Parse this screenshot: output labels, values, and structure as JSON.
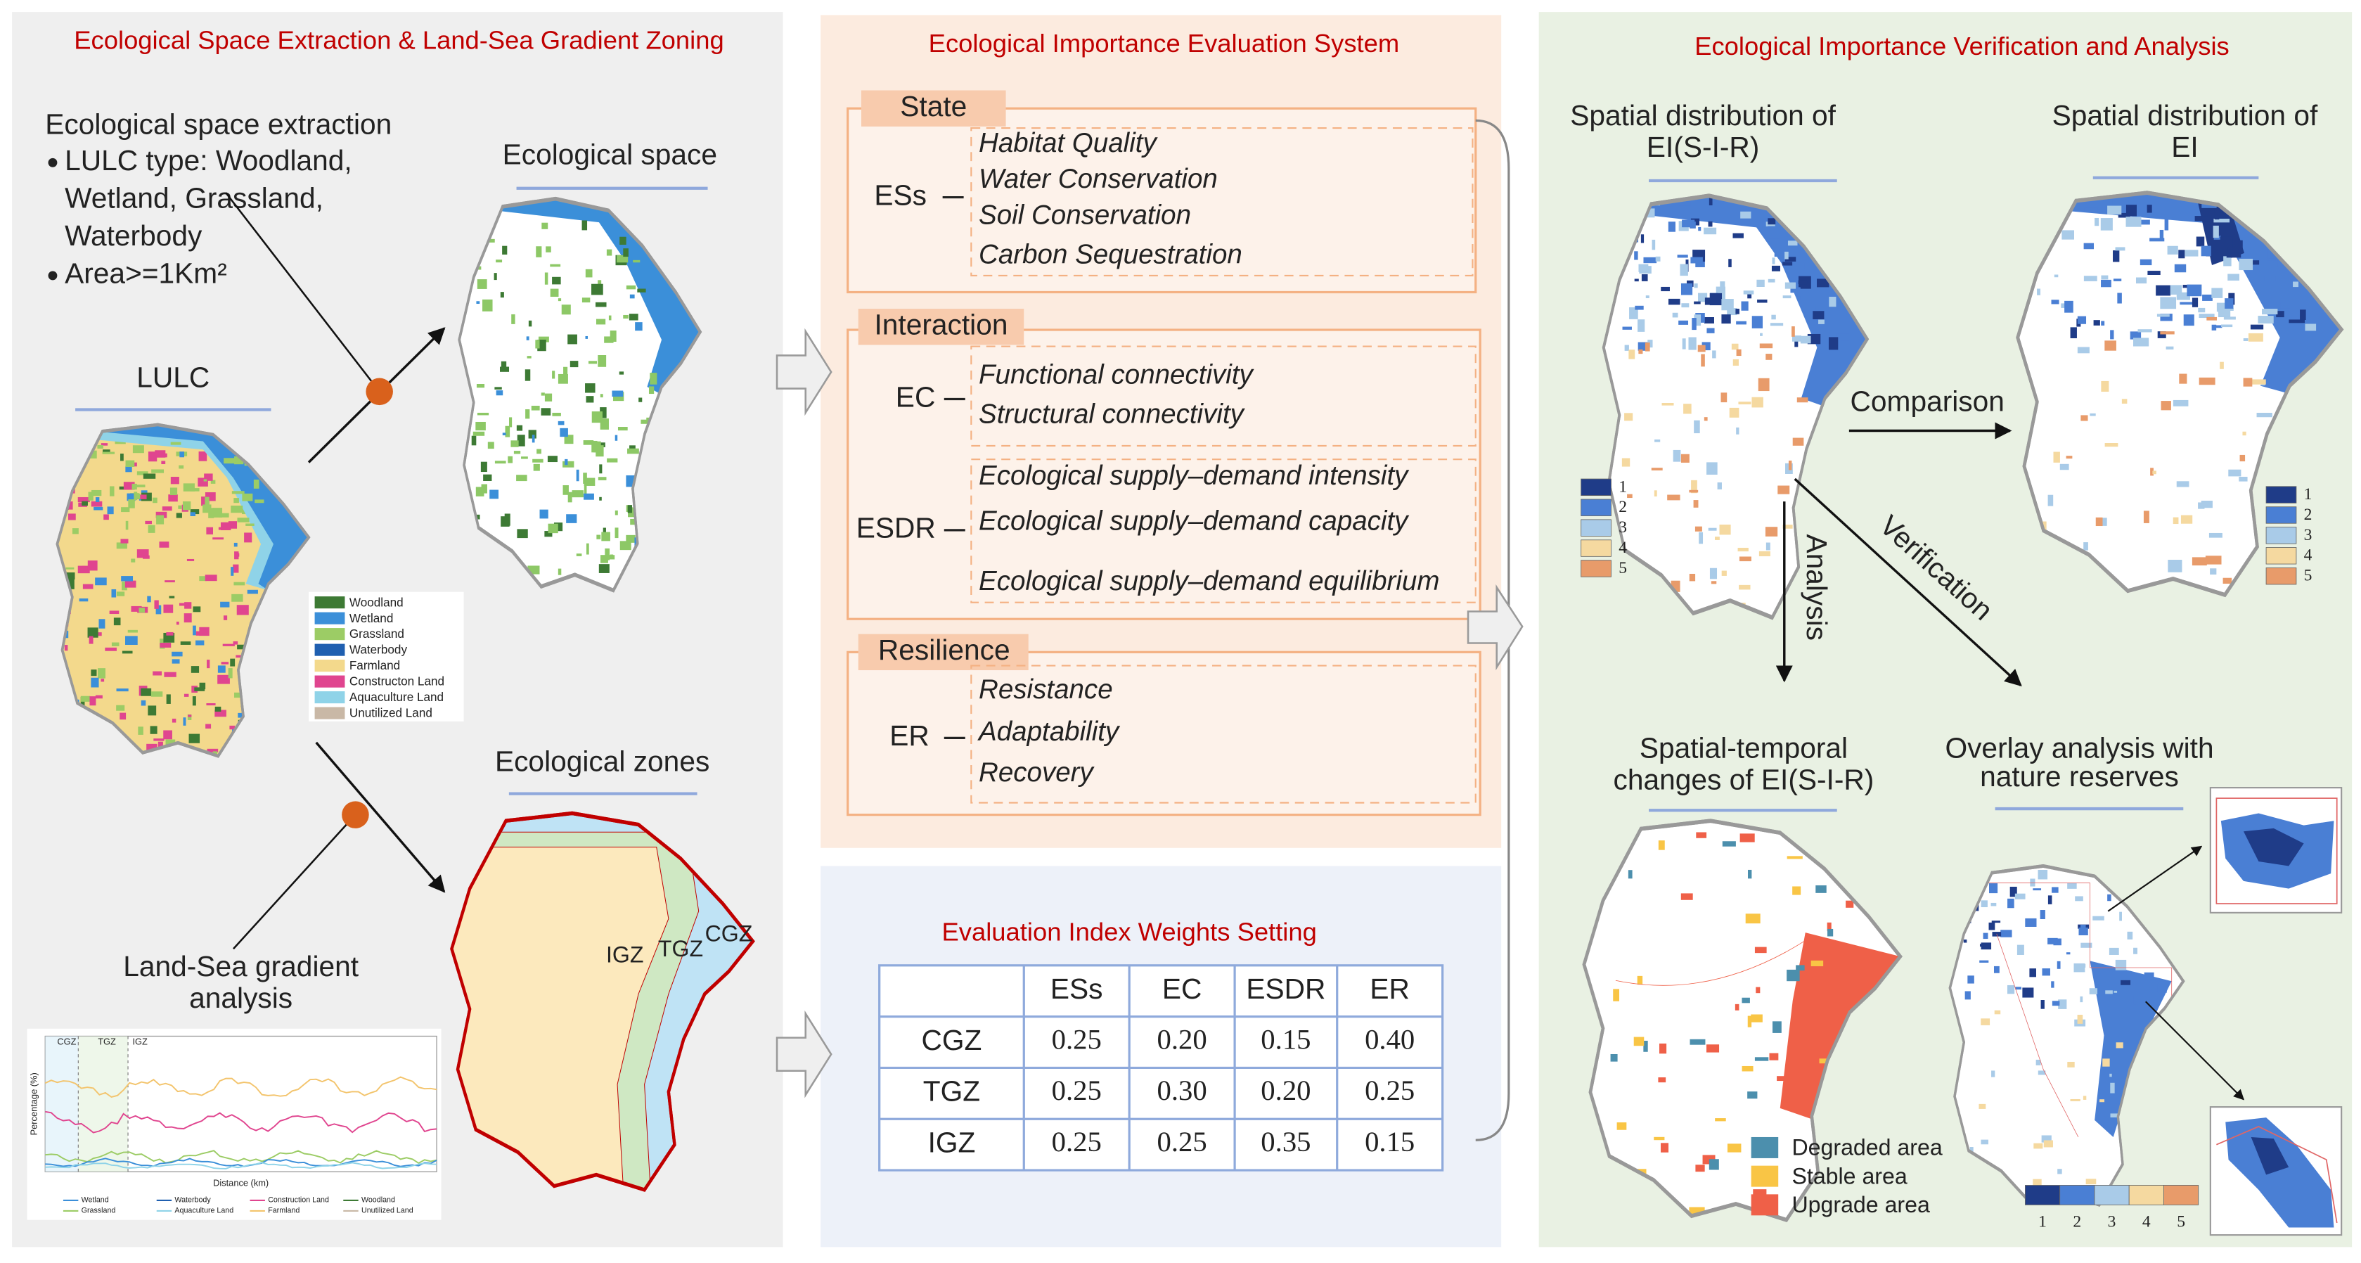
{
  "left": {
    "title": "Ecological Space Extraction & Land-Sea Gradient Zoning",
    "extraction_heading": "Ecological space extraction",
    "bullets": [
      [
        "LULC type: Woodland,",
        "Wetland, Grassland,",
        "Waterbody"
      ],
      [
        "Area>=1Km²"
      ]
    ],
    "ecological_space": "Ecological space",
    "lulc": "LULC",
    "lulc_legend": [
      "Woodland",
      "Wetland",
      "Grassland",
      "Waterbody",
      "Farmland",
      "Constructon Land",
      "Aquaculture Land",
      "Unutilized Land"
    ],
    "ecological_zones": "Ecological zones",
    "zones": [
      "IGZ",
      "TGZ",
      "CGZ"
    ],
    "gradient_analysis": [
      "Land-Sea gradient",
      "analysis"
    ],
    "gradient_chart": {
      "zones": [
        "CGZ",
        "TGZ",
        "IGZ"
      ],
      "ylabel": "Percentage (%)",
      "xlabel": "Distance (km)",
      "legend": [
        "Wetland",
        "Waterbody",
        "Construction Land",
        "Woodland",
        "Grassland",
        "Aquaculture Land",
        "Farmland",
        "Unutilized Land"
      ]
    }
  },
  "middle": {
    "title": "Ecological Importance Evaluation System",
    "groups": [
      {
        "tab": "State",
        "blocks": [
          {
            "label": "ESs",
            "items": [
              "Habitat Quality",
              "Water Conservation",
              "Soil Conservation",
              "Carbon Sequestration"
            ]
          }
        ]
      },
      {
        "tab": "Interaction",
        "blocks": [
          {
            "label": "EC",
            "items": [
              "Functional connectivity",
              "Structural connectivity"
            ]
          },
          {
            "label": "ESDR",
            "items": [
              "Ecological supply–demand intensity",
              "Ecological supply–demand capacity",
              "Ecological supply–demand equilibrium"
            ]
          }
        ]
      },
      {
        "tab": "Resilience",
        "blocks": [
          {
            "label": "ER",
            "items": [
              "Resistance",
              "Adaptability",
              "Recovery"
            ]
          }
        ]
      }
    ],
    "weights": {
      "title": "Evaluation Index Weights Setting",
      "header": [
        "ESs",
        "EC",
        "ESDR",
        "ER"
      ],
      "rows": [
        [
          "CGZ",
          "0.25",
          "0.20",
          "0.15",
          "0.40"
        ],
        [
          "TGZ",
          "0.25",
          "0.30",
          "0.20",
          "0.25"
        ],
        [
          "IGZ",
          "0.25",
          "0.25",
          "0.35",
          "0.15"
        ]
      ]
    }
  },
  "right": {
    "title": "Ecological Importance Verification and Analysis",
    "maps": [
      {
        "title": [
          "Spatial distribution of",
          "EI(S-I-R)"
        ]
      },
      {
        "title": [
          "Spatial distribution of",
          "EI"
        ]
      },
      {
        "title": [
          "Spatial-temporal",
          "changes of EI(S-I-R)"
        ]
      },
      {
        "title": [
          "Overlay analysis with",
          "nature reserves"
        ]
      }
    ],
    "ei_legend": [
      "1",
      "2",
      "3",
      "4",
      "5"
    ],
    "comparison": "Comparison",
    "analysis": "Analysis",
    "verification": "Verification",
    "change_legend": [
      "Degraded area",
      "Stable area",
      "Upgrade area"
    ]
  }
}
